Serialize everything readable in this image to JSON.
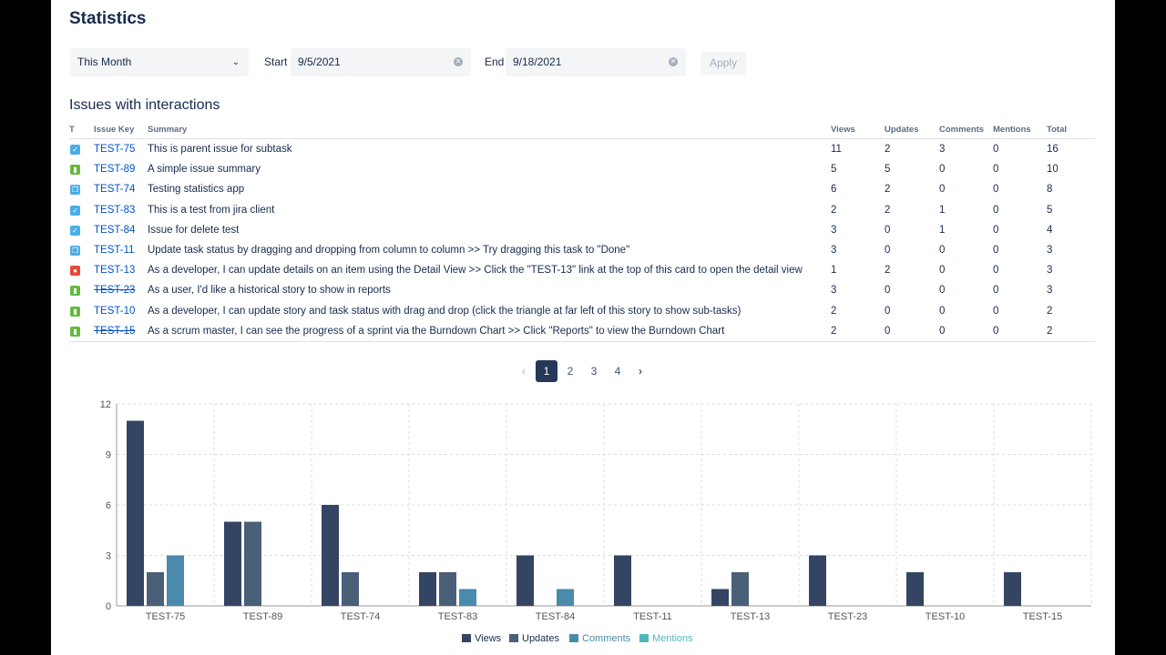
{
  "title": "Statistics",
  "filters": {
    "period": "This Month",
    "start_label": "Start",
    "start_value": "9/5/2021",
    "end_label": "End",
    "end_value": "9/18/2021",
    "apply_label": "Apply"
  },
  "table": {
    "title": "Issues with interactions",
    "columns": [
      "T",
      "Issue Key",
      "Summary",
      "Views",
      "Updates",
      "Comments",
      "Mentions",
      "Total"
    ],
    "rows": [
      {
        "type": "subtask",
        "key": "TEST-75",
        "summary": "This is parent issue for subtask",
        "views": "11",
        "updates": "2",
        "comments": "3",
        "mentions": "0",
        "total": "16",
        "done": false
      },
      {
        "type": "story",
        "key": "TEST-89",
        "summary": "A simple issue summary",
        "views": "5",
        "updates": "5",
        "comments": "0",
        "mentions": "0",
        "total": "10",
        "done": false
      },
      {
        "type": "task",
        "key": "TEST-74",
        "summary": "Testing statistics app",
        "views": "6",
        "updates": "2",
        "comments": "0",
        "mentions": "0",
        "total": "8",
        "done": false
      },
      {
        "type": "subtask",
        "key": "TEST-83",
        "summary": "This is a test from jira client",
        "views": "2",
        "updates": "2",
        "comments": "1",
        "mentions": "0",
        "total": "5",
        "done": false
      },
      {
        "type": "subtask",
        "key": "TEST-84",
        "summary": "Issue for delete test",
        "views": "3",
        "updates": "0",
        "comments": "1",
        "mentions": "0",
        "total": "4",
        "done": false
      },
      {
        "type": "task",
        "key": "TEST-11",
        "summary": "Update task status by dragging and dropping from column to column >> Try dragging this task to \"Done\"",
        "views": "3",
        "updates": "0",
        "comments": "0",
        "mentions": "0",
        "total": "3",
        "done": false
      },
      {
        "type": "bug",
        "key": "TEST-13",
        "summary": "As a developer, I can update details on an item using the Detail View >> Click the \"TEST-13\" link at the top of this card to open the detail view",
        "views": "1",
        "updates": "2",
        "comments": "0",
        "mentions": "0",
        "total": "3",
        "done": false
      },
      {
        "type": "story",
        "key": "TEST-23",
        "summary": "As a user, I'd like a historical story to show in reports",
        "views": "3",
        "updates": "0",
        "comments": "0",
        "mentions": "0",
        "total": "3",
        "done": true
      },
      {
        "type": "story",
        "key": "TEST-10",
        "summary": "As a developer, I can update story and task status with drag and drop (click the triangle at far left of this story to show sub-tasks)",
        "views": "2",
        "updates": "0",
        "comments": "0",
        "mentions": "0",
        "total": "2",
        "done": false
      },
      {
        "type": "story",
        "key": "TEST-15",
        "summary": "As a scrum master, I can see the progress of a sprint via the Burndown Chart >> Click \"Reports\" to view the Burndown Chart",
        "views": "2",
        "updates": "0",
        "comments": "0",
        "mentions": "0",
        "total": "2",
        "done": true
      }
    ]
  },
  "pagination": {
    "pages": [
      "1",
      "2",
      "3",
      "4"
    ],
    "current": "1"
  },
  "icon_colors": {
    "subtask": "#4bade8",
    "story": "#63ba3c",
    "task": "#4bade8",
    "bug": "#e5493a"
  },
  "chart_data": {
    "type": "bar",
    "categories": [
      "TEST-75",
      "TEST-89",
      "TEST-74",
      "TEST-83",
      "TEST-84",
      "TEST-11",
      "TEST-13",
      "TEST-23",
      "TEST-10",
      "TEST-15"
    ],
    "series": [
      {
        "name": "Views",
        "color": "#344563",
        "values": [
          11,
          5,
          6,
          2,
          3,
          3,
          1,
          3,
          2,
          2
        ]
      },
      {
        "name": "Updates",
        "color": "#4a5f78",
        "values": [
          2,
          5,
          2,
          2,
          0,
          0,
          2,
          0,
          0,
          0
        ]
      },
      {
        "name": "Comments",
        "color": "#4a8aad",
        "values": [
          3,
          0,
          0,
          1,
          1,
          0,
          0,
          0,
          0,
          0
        ]
      },
      {
        "name": "Mentions",
        "color": "#4fb8b8",
        "values": [
          0,
          0,
          0,
          0,
          0,
          0,
          0,
          0,
          0,
          0
        ]
      }
    ],
    "ylim": [
      0,
      12
    ],
    "yticks": [
      "0",
      "3",
      "6",
      "9",
      "12"
    ],
    "grid": true,
    "legend": "bottom"
  }
}
